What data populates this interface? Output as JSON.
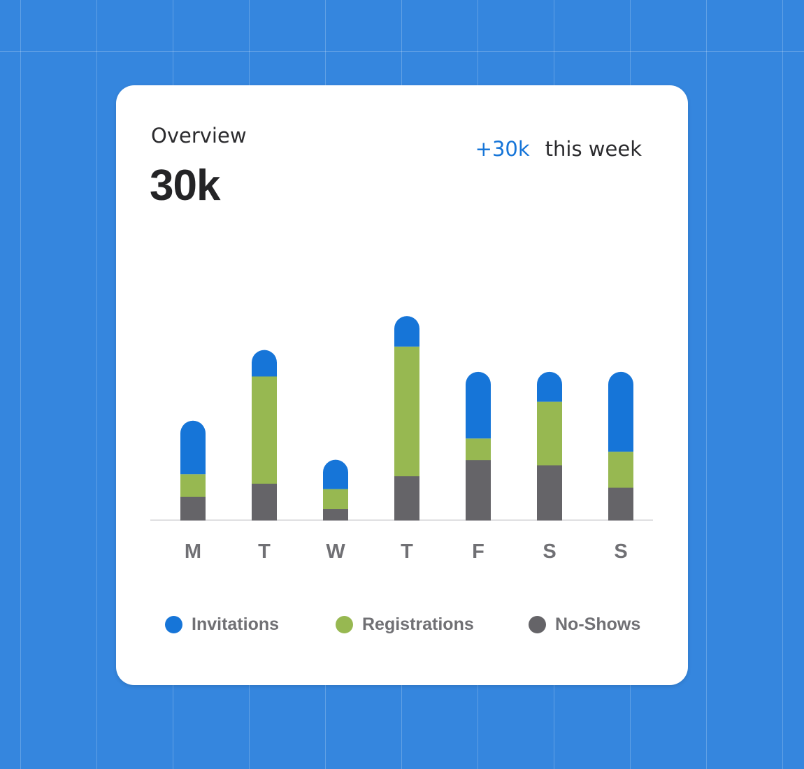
{
  "header": {
    "title": "Overview",
    "total": "30k",
    "delta": "+30k",
    "period": "this week"
  },
  "colors": {
    "background": "#3586de",
    "card": "#ffffff",
    "invitations": "#1675d8",
    "registrations": "#97b851",
    "no_shows": "#656468",
    "delta": "#1675d8",
    "axis_labels": "#707074"
  },
  "chart_data": {
    "type": "bar",
    "stacked": true,
    "categories": [
      "M",
      "T",
      "W",
      "T",
      "F",
      "S",
      "S"
    ],
    "series": [
      {
        "name": "No-Shows",
        "values": [
          4.1,
          6.4,
          2.0,
          7.7,
          10.5,
          9.6,
          5.7
        ]
      },
      {
        "name": "Registrations",
        "values": [
          3.9,
          18.6,
          3.4,
          22.5,
          3.7,
          11.0,
          6.2
        ]
      },
      {
        "name": "Invitations",
        "values": [
          9.3,
          4.6,
          5.1,
          5.3,
          11.6,
          5.2,
          13.9
        ]
      }
    ],
    "ylim": [
      0,
      36
    ],
    "grid": false,
    "legend_position": "bottom"
  },
  "legend": [
    {
      "label": "Invitations",
      "color": "#1675d8"
    },
    {
      "label": "Registrations",
      "color": "#97b851"
    },
    {
      "label": "No-Shows",
      "color": "#656468"
    }
  ]
}
